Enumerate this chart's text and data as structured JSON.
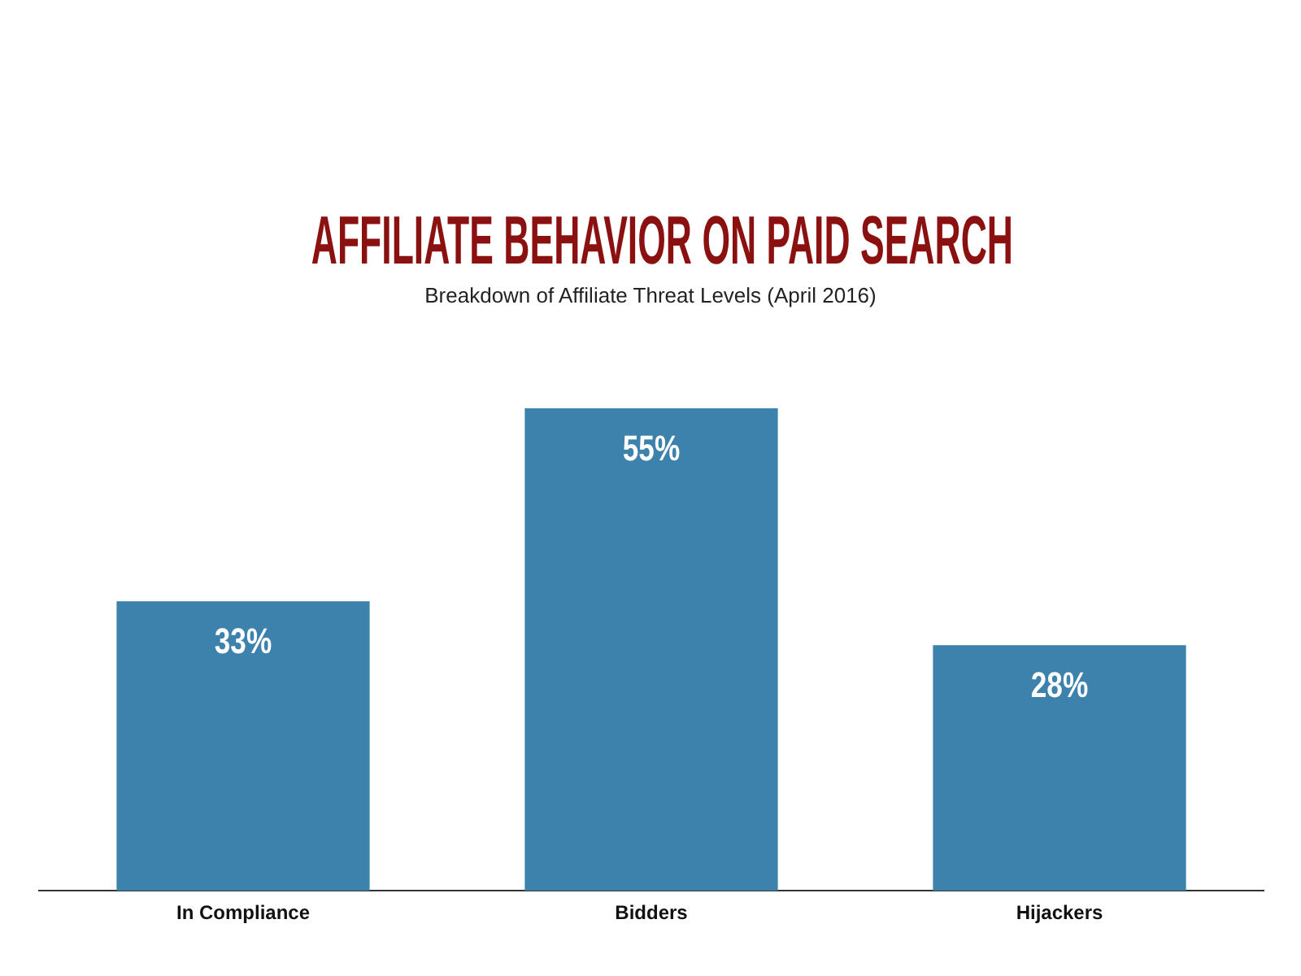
{
  "chart_data": {
    "type": "bar",
    "title": "AFFILIATE BEHAVIOR ON PAID SEARCH",
    "subtitle": "Breakdown of Affiliate Threat Levels (April 2016)",
    "categories": [
      "In Compliance",
      "Bidders",
      "Hijackers"
    ],
    "values": [
      33,
      55,
      28
    ],
    "value_labels": [
      "33%",
      "55%",
      "28%"
    ],
    "color": "#3d82ad",
    "tick_labels": "x"
  }
}
